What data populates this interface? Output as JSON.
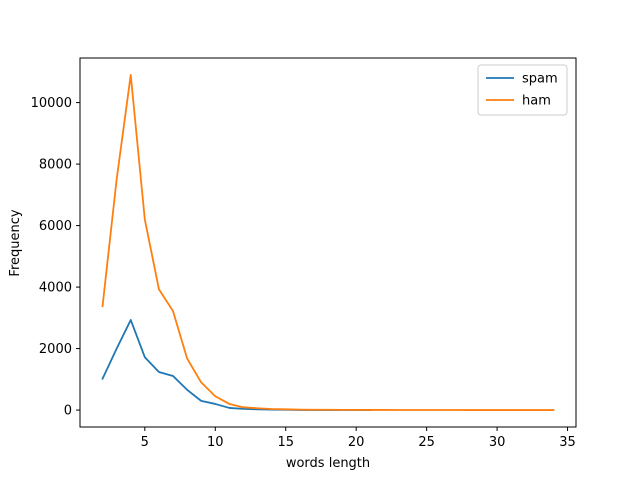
{
  "chart_data": {
    "type": "line",
    "title": "",
    "xlabel": "words length",
    "ylabel": "Frequency",
    "xlim": [
      0.4,
      35.6
    ],
    "ylim": [
      -550,
      11450
    ],
    "xticks": [
      5,
      10,
      15,
      20,
      25,
      30,
      35
    ],
    "yticks": [
      0,
      2000,
      4000,
      6000,
      8000,
      10000
    ],
    "grid": false,
    "legend_position": "top-right",
    "series": [
      {
        "name": "spam",
        "color": "#1f77b4",
        "x": [
          2,
          3,
          4,
          5,
          6,
          7,
          8,
          9,
          10,
          11,
          12,
          13,
          14,
          15,
          16,
          17,
          18,
          19,
          20,
          21
        ],
        "values": [
          1020,
          2000,
          2930,
          1720,
          1240,
          1110,
          660,
          300,
          200,
          70,
          40,
          25,
          15,
          10,
          5,
          5,
          3,
          2,
          2,
          1
        ]
      },
      {
        "name": "ham",
        "color": "#ff7f0e",
        "x": [
          2,
          3,
          4,
          5,
          6,
          7,
          8,
          9,
          10,
          11,
          12,
          13,
          14,
          15,
          16,
          17,
          18,
          19,
          20,
          21,
          22,
          23,
          24,
          25,
          26,
          27,
          28,
          29,
          30,
          31,
          32,
          33,
          34
        ],
        "values": [
          3380,
          7500,
          10900,
          6200,
          3930,
          3220,
          1680,
          900,
          450,
          200,
          90,
          60,
          35,
          25,
          15,
          12,
          10,
          8,
          6,
          5,
          4,
          3,
          3,
          2,
          2,
          2,
          1,
          1,
          1,
          1,
          1,
          1,
          1
        ]
      }
    ]
  }
}
